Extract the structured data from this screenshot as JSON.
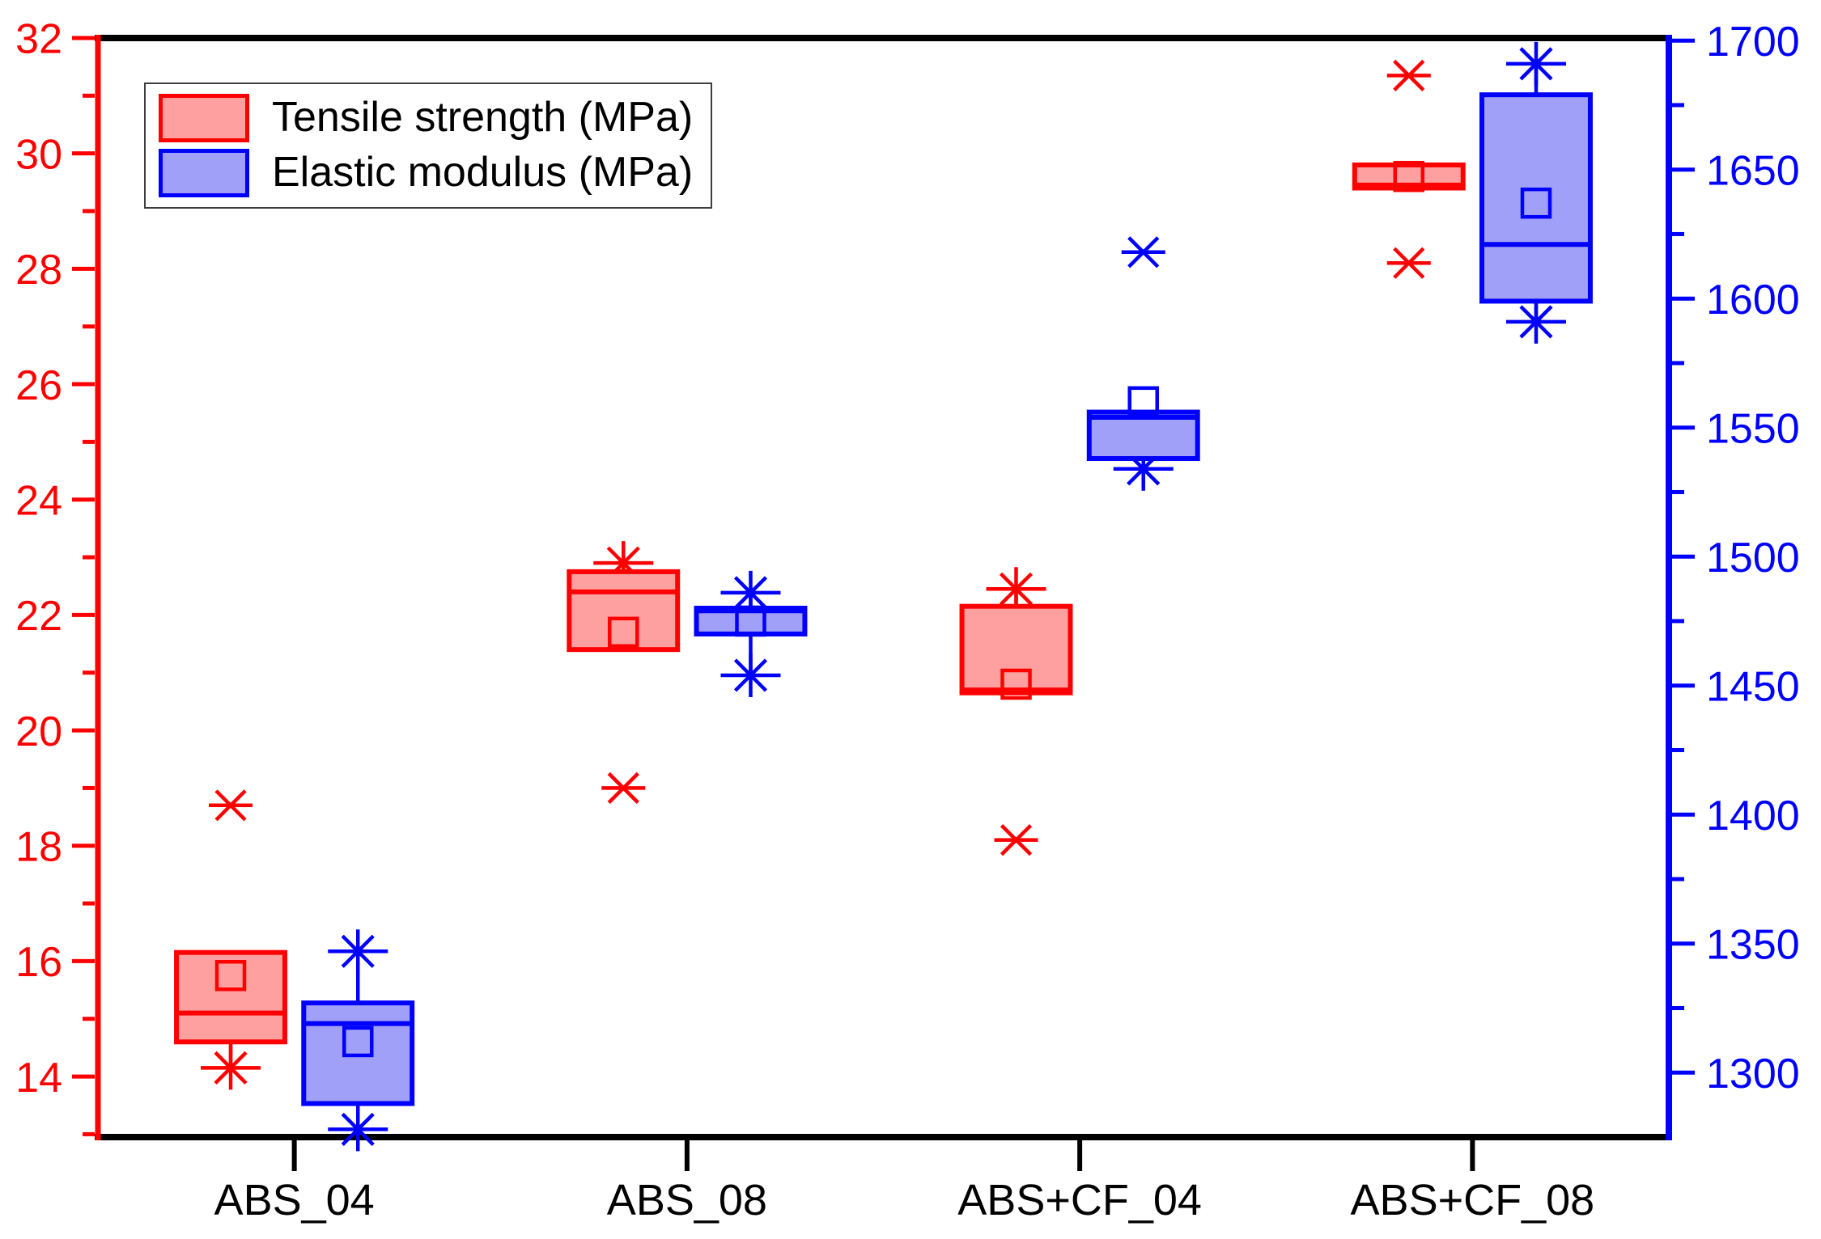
{
  "legend": {
    "items": [
      {
        "label": "Tensile strength (MPa)",
        "stroke": "#ff0000",
        "fill": "#ffa0a0"
      },
      {
        "label": "Elastic modulus (MPa)",
        "stroke": "#0000ff",
        "fill": "#a0a0f8"
      }
    ]
  },
  "chart_data": {
    "type": "box",
    "title": "",
    "categories": [
      "ABS_04",
      "ABS_08",
      "ABS+CF_04",
      "ABS+CF_08"
    ],
    "left_axis": {
      "title": "",
      "color": "#ff0000",
      "min": 12.95,
      "max": 32,
      "major_ticks": [
        14,
        16,
        18,
        20,
        22,
        24,
        26,
        28,
        30,
        32
      ],
      "minor_ticks": [
        13,
        15,
        17,
        19,
        21,
        23,
        25,
        27,
        29,
        31
      ]
    },
    "right_axis": {
      "title": "",
      "color": "#0000ff",
      "min": 1275,
      "max": 1701,
      "major_ticks": [
        1300,
        1350,
        1400,
        1450,
        1500,
        1550,
        1600,
        1650,
        1700
      ],
      "minor_ticks": [
        1325,
        1375,
        1425,
        1475,
        1525,
        1575,
        1625,
        1675
      ]
    },
    "series": [
      {
        "name": "Tensile strength (MPa)",
        "axis": "left",
        "stroke": "#ff0000",
        "fill": "#ffa0a0",
        "boxes": [
          {
            "category": "ABS_04",
            "whisker_low": 14.15,
            "q1": 14.6,
            "median": 15.1,
            "q3": 16.15,
            "whisker_high": null,
            "mean": 15.75,
            "outliers": [
              18.7
            ]
          },
          {
            "category": "ABS_08",
            "whisker_low": null,
            "q1": 21.4,
            "median": 22.4,
            "q3": 22.75,
            "whisker_high": 22.9,
            "mean": 21.7,
            "outliers": [
              19.0
            ]
          },
          {
            "category": "ABS+CF_04",
            "whisker_low": null,
            "q1": 20.65,
            "median": 20.7,
            "q3": 22.15,
            "whisker_high": 22.45,
            "mean": 20.8,
            "outliers": [
              18.1
            ]
          },
          {
            "category": "ABS+CF_08",
            "whisker_low": null,
            "q1": 29.4,
            "median": 29.45,
            "q3": 29.8,
            "whisker_high": null,
            "mean": 29.6,
            "outliers": [
              31.35,
              28.1
            ]
          }
        ]
      },
      {
        "name": "Elastic modulus (MPa)",
        "axis": "right",
        "stroke": "#0000ff",
        "fill": "#a0a0f8",
        "boxes": [
          {
            "category": "ABS_04",
            "whisker_low": 1278,
            "q1": 1288,
            "median": 1319,
            "q3": 1327,
            "whisker_high": 1347,
            "mean": 1312,
            "outliers": []
          },
          {
            "category": "ABS_08",
            "whisker_low": 1454,
            "q1": 1470,
            "median": 1479,
            "q3": 1480,
            "whisker_high": 1486,
            "mean": 1475,
            "outliers": []
          },
          {
            "category": "ABS+CF_04",
            "whisker_low": 1534,
            "q1": 1538,
            "median": 1554,
            "q3": 1556,
            "whisker_high": null,
            "mean": 1560,
            "outliers": [
              1618
            ]
          },
          {
            "category": "ABS+CF_08",
            "whisker_low": 1591,
            "q1": 1599,
            "median": 1621,
            "q3": 1679,
            "whisker_high": 1691,
            "mean": 1637,
            "outliers": []
          }
        ]
      }
    ]
  }
}
